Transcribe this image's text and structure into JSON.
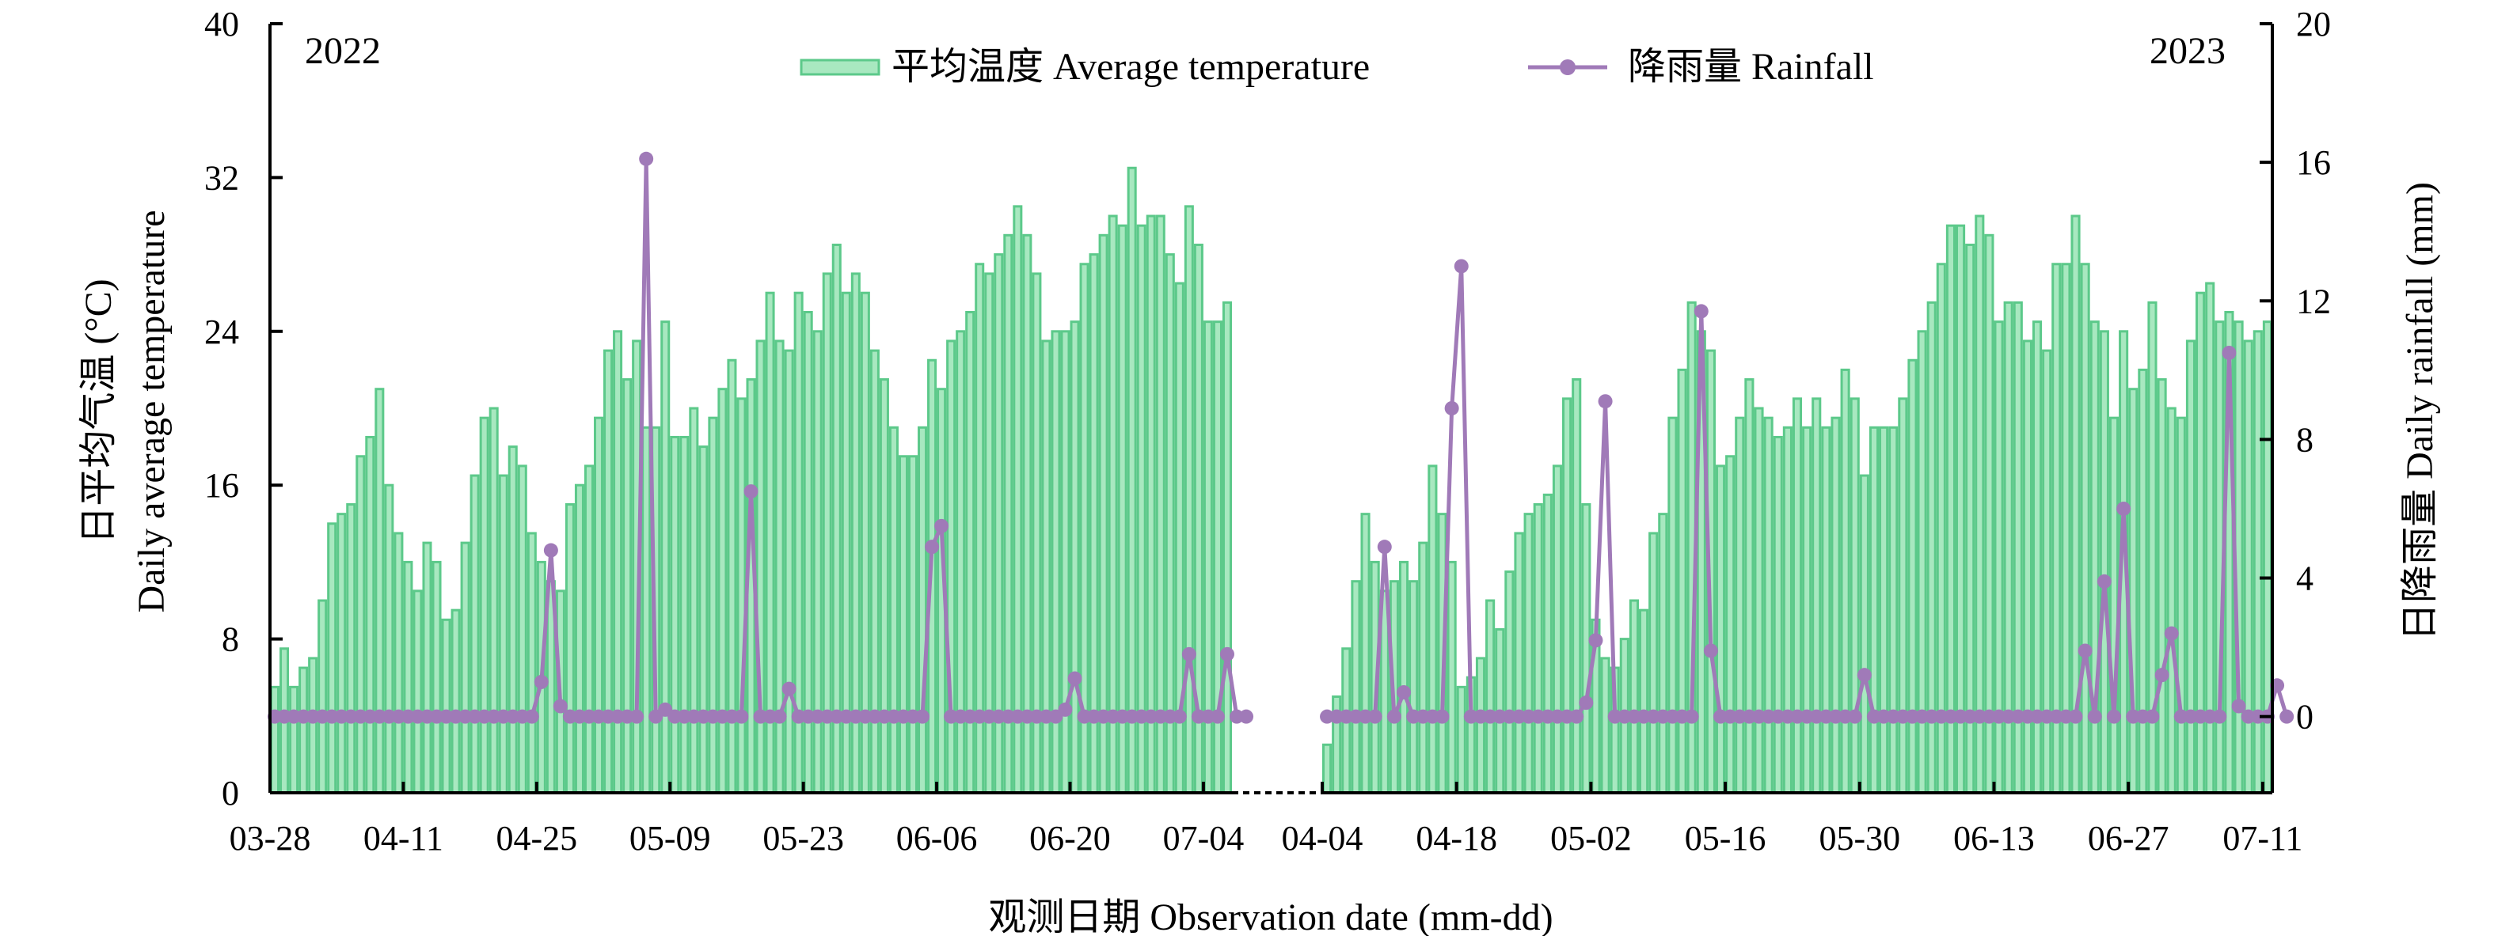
{
  "chart_data": {
    "type": "bar+line",
    "xlabel": "观测日期 Observation date (mm-dd)",
    "ylabel_left": [
      "日平均气温 (°C)",
      "Daily average temperature"
    ],
    "ylabel_right": "日降雨量 Daily rainfall (mm)",
    "ylim_left": [
      0,
      40
    ],
    "yticks_left": [
      "0",
      "8",
      "16",
      "24",
      "32",
      "40"
    ],
    "ylim_right": [
      -2.2,
      20
    ],
    "yticks_right": [
      "0",
      "4",
      "8",
      "12",
      "16",
      "20"
    ],
    "legend": {
      "placement": "top-center",
      "temperature": "平均温度 Average temperature",
      "rainfall": "降雨量 Rainfall"
    },
    "colors": {
      "bar_fill": "#a8e8c0",
      "bar_edge": "#5cc98a",
      "rain": "#a07ab8"
    },
    "panels": [
      {
        "year": "2022",
        "xticks": [
          "03-28",
          "04-11",
          "04-25",
          "05-09",
          "05-23",
          "06-06",
          "06-20",
          "07-04"
        ],
        "temperature": [
          5.5,
          7.5,
          5.5,
          6.5,
          7,
          10,
          14,
          14.5,
          15,
          17.5,
          18.5,
          21,
          16,
          13.5,
          12,
          10.5,
          13,
          12,
          9,
          9.5,
          13,
          16.5,
          19.5,
          20,
          16.5,
          18,
          17,
          13.5,
          12,
          11,
          10.5,
          15,
          16,
          17,
          19.5,
          23,
          24,
          21.5,
          23.5,
          19,
          19,
          24.5,
          18.5,
          18.5,
          20,
          18,
          19.5,
          21,
          22.5,
          20.5,
          21.5,
          23.5,
          26,
          23.5,
          23,
          26,
          25,
          24,
          27,
          28.5,
          26,
          27,
          26,
          23,
          21.5,
          19,
          17.5,
          17.5,
          19,
          22.5,
          21,
          23.5,
          24,
          25,
          27.5,
          27,
          28,
          29,
          30.5,
          29,
          27,
          23.5,
          24,
          24,
          24.5,
          27.5,
          28,
          29,
          30,
          29.5,
          32.5,
          29.5,
          30,
          30,
          28,
          26.5,
          30.5,
          28.5,
          24.5,
          24.5,
          25.5
        ],
        "rainfall": [
          0,
          0,
          0,
          0,
          0,
          0,
          0,
          0,
          0,
          0,
          0,
          0,
          0,
          0,
          0,
          0,
          0,
          0,
          0,
          0,
          0,
          0,
          0,
          0,
          0,
          0,
          0,
          0,
          1,
          4.8,
          0.3,
          0,
          0,
          0,
          0,
          0,
          0,
          0,
          0,
          16.1,
          0,
          0.2,
          0,
          0,
          0,
          0,
          0,
          0,
          0,
          0,
          6.5,
          0,
          0,
          0,
          0.8,
          0,
          0,
          0,
          0,
          0,
          0,
          0,
          0,
          0,
          0,
          0,
          0,
          0,
          0,
          4.9,
          5.5,
          0,
          0,
          0,
          0,
          0,
          0,
          0,
          0,
          0,
          0,
          0,
          0,
          0.2,
          1.1,
          0,
          0,
          0,
          0,
          0,
          0,
          0,
          0,
          0,
          0,
          0,
          1.8,
          0,
          0,
          0,
          1.8,
          0,
          0
        ]
      },
      {
        "year": "2023",
        "xticks": [
          "04-04",
          "04-18",
          "05-02",
          "05-16",
          "05-30",
          "06-13",
          "06-27",
          "07-11"
        ],
        "temperature": [
          2.5,
          5,
          7.5,
          11,
          14.5,
          12,
          10.5,
          11,
          12,
          11,
          13,
          17,
          14.5,
          12,
          5.5,
          6,
          7,
          10,
          8.5,
          11.5,
          13.5,
          14.5,
          15,
          15.5,
          17,
          20.5,
          21.5,
          15,
          9,
          7,
          6.5,
          8,
          10,
          9.5,
          13.5,
          14.5,
          19.5,
          22,
          25.5,
          24,
          23,
          17,
          17.5,
          19.5,
          21.5,
          20,
          19.5,
          18.5,
          19,
          20.5,
          19,
          20.5,
          19,
          19.5,
          22,
          20.5,
          16.5,
          19,
          19,
          19,
          20.5,
          22.5,
          24,
          25.5,
          27.5,
          29.5,
          29.5,
          28.5,
          30,
          29,
          24.5,
          25.5,
          25.5,
          23.5,
          24.5,
          23,
          27.5,
          27.5,
          30,
          27.5,
          24.5,
          24,
          19.5,
          24,
          21,
          22,
          25.5,
          21.5,
          20,
          19.5,
          23.5,
          26,
          26.5,
          24.5,
          25,
          24.5,
          23.5,
          24,
          24.5
        ],
        "rainfall": [
          0,
          0,
          0,
          0,
          0,
          0,
          4.9,
          0,
          0.7,
          0,
          0,
          0,
          0,
          8.9,
          13,
          0,
          0,
          0,
          0,
          0,
          0,
          0,
          0,
          0,
          0,
          0,
          0,
          0.4,
          2.2,
          9.1,
          0,
          0,
          0,
          0,
          0,
          0,
          0,
          0,
          0,
          11.7,
          1.9,
          0,
          0,
          0,
          0,
          0,
          0,
          0,
          0,
          0,
          0,
          0,
          0,
          0,
          0,
          0,
          1.2,
          0,
          0,
          0,
          0,
          0,
          0,
          0,
          0,
          0,
          0,
          0,
          0,
          0,
          0,
          0,
          0,
          0,
          0,
          0,
          0,
          0,
          0,
          1.9,
          0,
          3.9,
          0,
          6,
          0,
          0,
          0,
          1.2,
          2.4,
          0,
          0,
          0,
          0,
          0,
          10.5,
          0.3,
          0,
          0,
          0,
          0.9,
          0
        ]
      }
    ]
  }
}
